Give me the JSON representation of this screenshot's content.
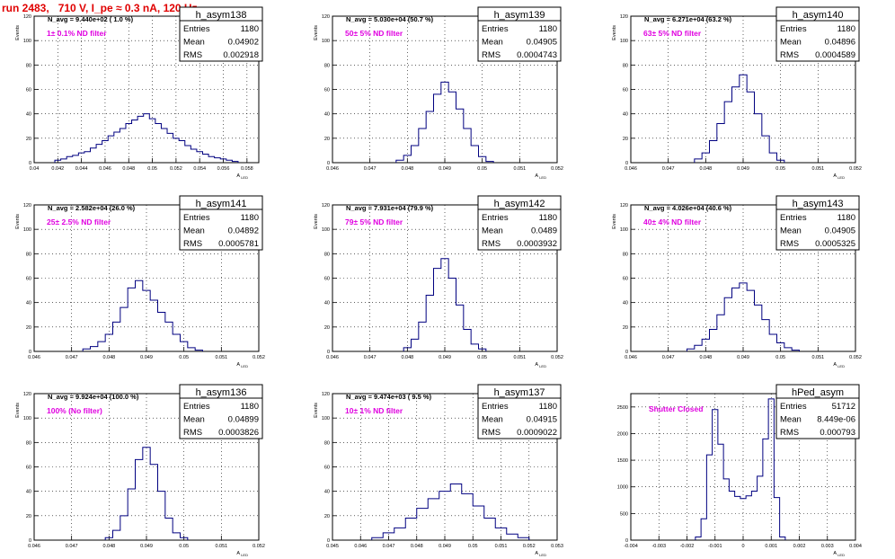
{
  "title": "run 2483,   710 V, I_pe ≈ 0.3 nA, 120 Hz",
  "chart_data": [
    {
      "type": "bar",
      "name": "h_asym138",
      "ylabel": "Events",
      "xlabel": "A_LED",
      "xlim": [
        0.04,
        0.059
      ],
      "ylim": [
        0,
        120
      ],
      "xticks": [
        0.04,
        0.042,
        0.044,
        0.046,
        0.048,
        0.05,
        0.052,
        0.054,
        0.056,
        0.058
      ],
      "yticks": [
        0,
        20,
        40,
        60,
        80,
        100,
        120
      ],
      "navg": "N_avg = 9.440e+02 ( 1.0 %)",
      "filter": "1± 0.1% ND filter",
      "stats": {
        "entries": "1180",
        "mean": "0.04902",
        "rms": "0.002918"
      },
      "bins": [
        0.042,
        0.0425,
        0.043,
        0.0435,
        0.044,
        0.0445,
        0.045,
        0.0455,
        0.046,
        0.0465,
        0.047,
        0.0475,
        0.048,
        0.0485,
        0.049,
        0.0495,
        0.05,
        0.0505,
        0.051,
        0.0515,
        0.052,
        0.0525,
        0.053,
        0.0535,
        0.054,
        0.0545,
        0.055,
        0.0555,
        0.056,
        0.0565,
        0.057
      ],
      "values": [
        2,
        3,
        5,
        6,
        8,
        9,
        12,
        15,
        18,
        22,
        25,
        28,
        32,
        35,
        38,
        40,
        36,
        32,
        28,
        24,
        20,
        18,
        14,
        11,
        9,
        7,
        5,
        4,
        3,
        2,
        1
      ]
    },
    {
      "type": "bar",
      "name": "h_asym139",
      "ylabel": "Events",
      "xlabel": "A_LED",
      "xlim": [
        0.046,
        0.052
      ],
      "ylim": [
        0,
        120
      ],
      "xticks": [
        0.046,
        0.047,
        0.048,
        0.049,
        0.05,
        0.051,
        0.052
      ],
      "yticks": [
        0,
        20,
        40,
        60,
        80,
        100,
        120
      ],
      "navg": "N_avg = 5.030e+04 (50.7 %)",
      "filter": "50± 5% ND filter",
      "stats": {
        "entries": "1180",
        "mean": "0.04905",
        "rms": "0.0004743"
      },
      "bins": [
        0.0478,
        0.048,
        0.0482,
        0.0484,
        0.0486,
        0.0488,
        0.049,
        0.0492,
        0.0494,
        0.0496,
        0.0498,
        0.05,
        0.0502
      ],
      "values": [
        2,
        6,
        14,
        28,
        42,
        56,
        66,
        58,
        44,
        28,
        14,
        5,
        1
      ]
    },
    {
      "type": "bar",
      "name": "h_asym140",
      "ylabel": "Events",
      "xlabel": "A_LED",
      "xlim": [
        0.046,
        0.052
      ],
      "ylim": [
        0,
        120
      ],
      "xticks": [
        0.046,
        0.047,
        0.048,
        0.049,
        0.05,
        0.051,
        0.052
      ],
      "yticks": [
        0,
        20,
        40,
        60,
        80,
        100,
        120
      ],
      "navg": "N_avg = 6.271e+04 (63.2 %)",
      "filter": "63± 5% ND filter",
      "stats": {
        "entries": "1180",
        "mean": "0.04896",
        "rms": "0.0004589"
      },
      "bins": [
        0.0478,
        0.048,
        0.0482,
        0.0484,
        0.0486,
        0.0488,
        0.049,
        0.0492,
        0.0494,
        0.0496,
        0.0498,
        0.05
      ],
      "values": [
        3,
        8,
        18,
        32,
        50,
        62,
        72,
        58,
        40,
        22,
        8,
        2
      ]
    },
    {
      "type": "bar",
      "name": "h_asym141",
      "ylabel": "Events",
      "xlabel": "A_LED",
      "xlim": [
        0.046,
        0.052
      ],
      "ylim": [
        0,
        120
      ],
      "xticks": [
        0.046,
        0.047,
        0.048,
        0.049,
        0.05,
        0.051,
        0.052
      ],
      "yticks": [
        0,
        20,
        40,
        60,
        80,
        100,
        120
      ],
      "navg": "N_avg = 2.582e+04 (26.0 %)",
      "filter": "25± 2.5% ND filter",
      "stats": {
        "entries": "1180",
        "mean": "0.04892",
        "rms": "0.0005781"
      },
      "bins": [
        0.0474,
        0.0476,
        0.0478,
        0.048,
        0.0482,
        0.0484,
        0.0486,
        0.0488,
        0.049,
        0.0492,
        0.0494,
        0.0496,
        0.0498,
        0.05,
        0.0502,
        0.0504
      ],
      "values": [
        2,
        4,
        8,
        14,
        24,
        36,
        52,
        58,
        50,
        42,
        32,
        24,
        14,
        8,
        3,
        1
      ]
    },
    {
      "type": "bar",
      "name": "h_asym142",
      "ylabel": "Events",
      "xlabel": "A_LED",
      "xlim": [
        0.046,
        0.052
      ],
      "ylim": [
        0,
        120
      ],
      "xticks": [
        0.046,
        0.047,
        0.048,
        0.049,
        0.05,
        0.051,
        0.052
      ],
      "yticks": [
        0,
        20,
        40,
        60,
        80,
        100,
        120
      ],
      "navg": "N_avg = 7.931e+04 (79.9 %)",
      "filter": "79± 5% ND filter",
      "stats": {
        "entries": "1180",
        "mean": "0.0489",
        "rms": "0.0003932"
      },
      "bins": [
        0.048,
        0.0482,
        0.0484,
        0.0486,
        0.0488,
        0.049,
        0.0492,
        0.0494,
        0.0496,
        0.0498,
        0.05
      ],
      "values": [
        3,
        10,
        24,
        46,
        68,
        76,
        60,
        38,
        18,
        6,
        2
      ]
    },
    {
      "type": "bar",
      "name": "h_asym143",
      "ylabel": "Events",
      "xlabel": "A_LED",
      "xlim": [
        0.046,
        0.052
      ],
      "ylim": [
        0,
        120
      ],
      "xticks": [
        0.046,
        0.047,
        0.048,
        0.049,
        0.05,
        0.051,
        0.052
      ],
      "yticks": [
        0,
        20,
        40,
        60,
        80,
        100,
        120
      ],
      "navg": "N_avg = 4.026e+04 (40.6 %)",
      "filter": "40± 4% ND filter",
      "stats": {
        "entries": "1180",
        "mean": "0.04905",
        "rms": "0.0005325"
      },
      "bins": [
        0.0476,
        0.0478,
        0.048,
        0.0482,
        0.0484,
        0.0486,
        0.0488,
        0.049,
        0.0492,
        0.0494,
        0.0496,
        0.0498,
        0.05,
        0.0502,
        0.0504
      ],
      "values": [
        2,
        5,
        10,
        18,
        30,
        44,
        52,
        56,
        50,
        38,
        26,
        14,
        7,
        3,
        1
      ]
    },
    {
      "type": "bar",
      "name": "h_asym136",
      "ylabel": "Events",
      "xlabel": "A_LED",
      "xlim": [
        0.046,
        0.052
      ],
      "ylim": [
        0,
        120
      ],
      "xticks": [
        0.046,
        0.047,
        0.048,
        0.049,
        0.05,
        0.051,
        0.052
      ],
      "yticks": [
        0,
        20,
        40,
        60,
        80,
        100,
        120
      ],
      "navg": "N_avg = 9.924e+04 (100.0 %)",
      "filter": "100% (No filter)",
      "stats": {
        "entries": "1180",
        "mean": "0.04899",
        "rms": "0.0003826"
      },
      "bins": [
        0.048,
        0.0482,
        0.0484,
        0.0486,
        0.0488,
        0.049,
        0.0492,
        0.0494,
        0.0496,
        0.0498,
        0.05
      ],
      "values": [
        2,
        8,
        20,
        42,
        66,
        76,
        62,
        40,
        18,
        6,
        2
      ]
    },
    {
      "type": "bar",
      "name": "h_asym137",
      "ylabel": "Events",
      "xlabel": "A_LED",
      "xlim": [
        0.045,
        0.053
      ],
      "ylim": [
        0,
        120
      ],
      "xticks": [
        0.045,
        0.046,
        0.047,
        0.048,
        0.049,
        0.05,
        0.051,
        0.052,
        0.053
      ],
      "yticks": [
        0,
        20,
        40,
        60,
        80,
        100,
        120
      ],
      "navg": "N_avg = 9.474e+03 ( 9.5 %)",
      "filter": "10± 1% ND filter",
      "stats": {
        "entries": "1180",
        "mean": "0.04915",
        "rms": "0.0009022"
      },
      "bins": [
        0.0466,
        0.047,
        0.0474,
        0.0478,
        0.0482,
        0.0486,
        0.049,
        0.0494,
        0.0498,
        0.0502,
        0.0506,
        0.051,
        0.0514,
        0.0518
      ],
      "values": [
        2,
        6,
        10,
        18,
        26,
        34,
        40,
        46,
        38,
        28,
        18,
        10,
        5,
        2
      ]
    },
    {
      "type": "bar",
      "name": "hPed_asym",
      "ylabel": "",
      "xlabel": "A_LED",
      "xlim": [
        -0.004,
        0.004
      ],
      "ylim": [
        0,
        2750
      ],
      "xticks": [
        -0.004,
        -0.003,
        -0.002,
        -0.001,
        0,
        0.001,
        0.002,
        0.003,
        0.004
      ],
      "yticks": [
        0,
        500,
        1000,
        1500,
        2000,
        2500
      ],
      "navg": "",
      "filter": "Shutter Closed",
      "stats": {
        "entries": "51712",
        "mean": "8.449e-06",
        "rms": "0.000793"
      },
      "bins": [
        -0.0016,
        -0.0014,
        -0.0012,
        -0.001,
        -0.0008,
        -0.0006,
        -0.0004,
        -0.0002,
        0.0,
        0.0002,
        0.0004,
        0.0006,
        0.0008,
        0.001,
        0.0012,
        0.0014
      ],
      "values": [
        60,
        400,
        1600,
        2450,
        1800,
        1150,
        920,
        820,
        780,
        830,
        920,
        1200,
        1900,
        2650,
        800,
        60
      ]
    }
  ]
}
